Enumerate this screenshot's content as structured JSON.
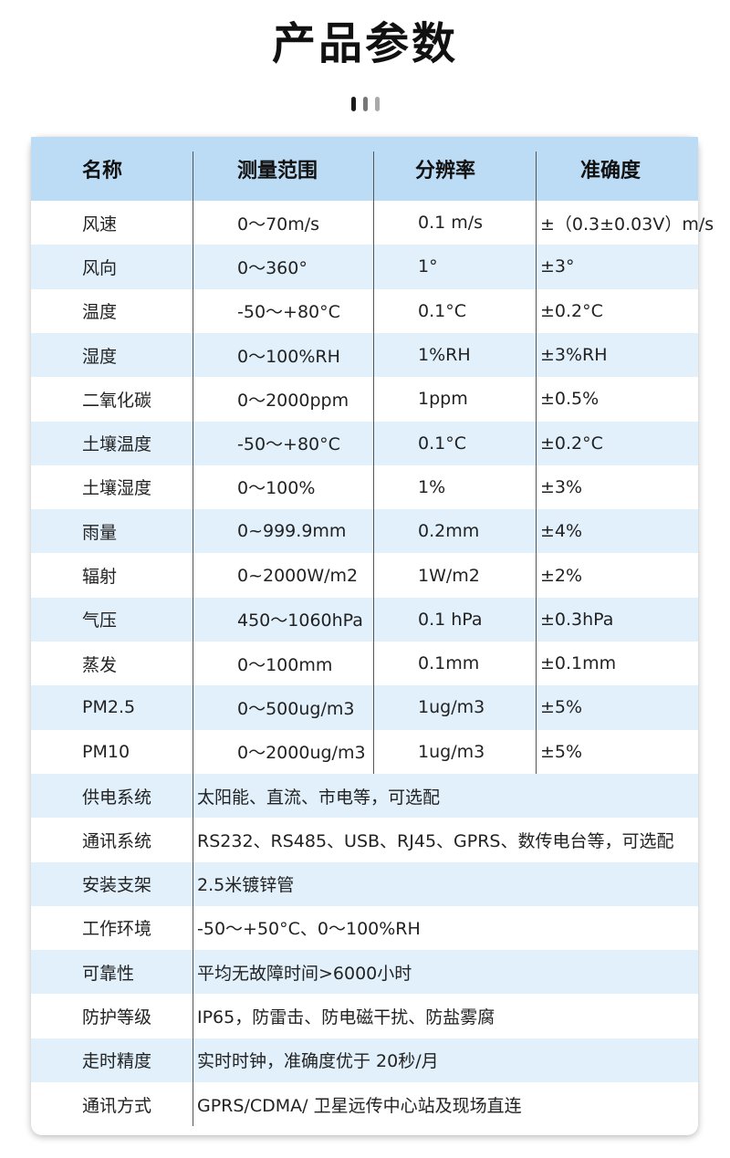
{
  "title": "产品参数",
  "colors": {
    "header_bg": "#bcdcf5",
    "row_alt_bg": "#e1f0fb",
    "row_bg": "#ffffff",
    "dot_dark": "#1a1a1a",
    "dot_gray": "#999999"
  },
  "table": {
    "headers": [
      "名称",
      "测量范围",
      "分辨率",
      "准确度"
    ],
    "rows": [
      [
        "风速",
        "0～70m/s",
        "0.1 m/s",
        "±（0.3±0.03V）m/s"
      ],
      [
        "风向",
        "0～360°",
        "1°",
        "±3°"
      ],
      [
        "温度",
        "-50～+80°C",
        "0.1°C",
        "±0.2°C"
      ],
      [
        "湿度",
        "0～100%RH",
        "1%RH",
        "±3%RH"
      ],
      [
        "二氧化碳",
        "0～2000ppm",
        "1ppm",
        "±0.5%"
      ],
      [
        "土壤温度",
        "-50～+80°C",
        "0.1°C",
        "±0.2°C"
      ],
      [
        "土壤湿度",
        "0～100%",
        "1%",
        "±3%"
      ],
      [
        "雨量",
        "0~999.9mm",
        "0.2mm",
        "±4%"
      ],
      [
        "辐射",
        "0~2000W/m2",
        "1W/m2",
        "±2%"
      ],
      [
        "气压",
        "450～1060hPa",
        "0.1 hPa",
        "±0.3hPa"
      ],
      [
        "蒸发",
        "0～100mm",
        "0.1mm",
        "±0.1mm"
      ],
      [
        "PM2.5",
        "0～500ug/m3",
        "1ug/m3",
        "±5%"
      ],
      [
        "PM10",
        "0～2000ug/m3",
        "1ug/m3",
        "±5%"
      ]
    ],
    "specs": [
      [
        "供电系统",
        "太阳能、直流、市电等，可选配"
      ],
      [
        "通讯系统",
        "RS232、RS485、USB、RJ45、GPRS、数传电台等，可选配"
      ],
      [
        "安装支架",
        "2.5米镀锌管"
      ],
      [
        "工作环境",
        "-50～+50°C、0～100%RH"
      ],
      [
        "可靠性",
        "平均无故障时间>6000小时"
      ],
      [
        "防护等级",
        "IP65，防雷击、防电磁干扰、防盐雾腐"
      ],
      [
        "走时精度",
        "实时时钟，准确度优于 20秒/月"
      ],
      [
        "通讯方式",
        "GPRS/CDMA/ 卫星远传中心站及现场直连"
      ]
    ]
  }
}
